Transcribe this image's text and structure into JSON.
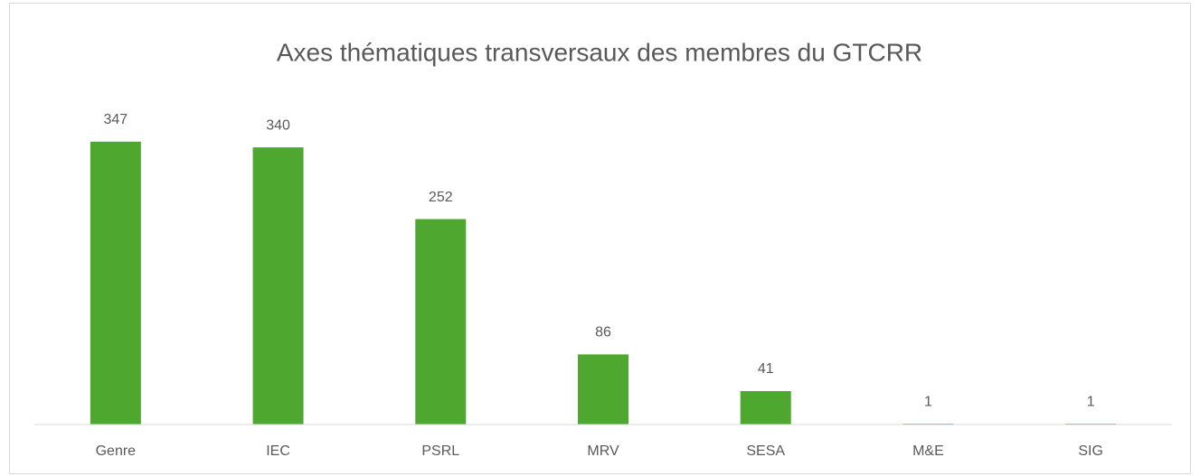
{
  "chart_data": {
    "type": "bar",
    "title": "Axes thématiques transversaux des membres du GTCRR",
    "categories": [
      "Genre",
      "IEC",
      "PSRL",
      "MRV",
      "SESA",
      "M&E",
      "SIG"
    ],
    "values": [
      347,
      340,
      252,
      86,
      41,
      1,
      1
    ],
    "color": "#4ea72e",
    "ylim": [
      0,
      400
    ]
  }
}
